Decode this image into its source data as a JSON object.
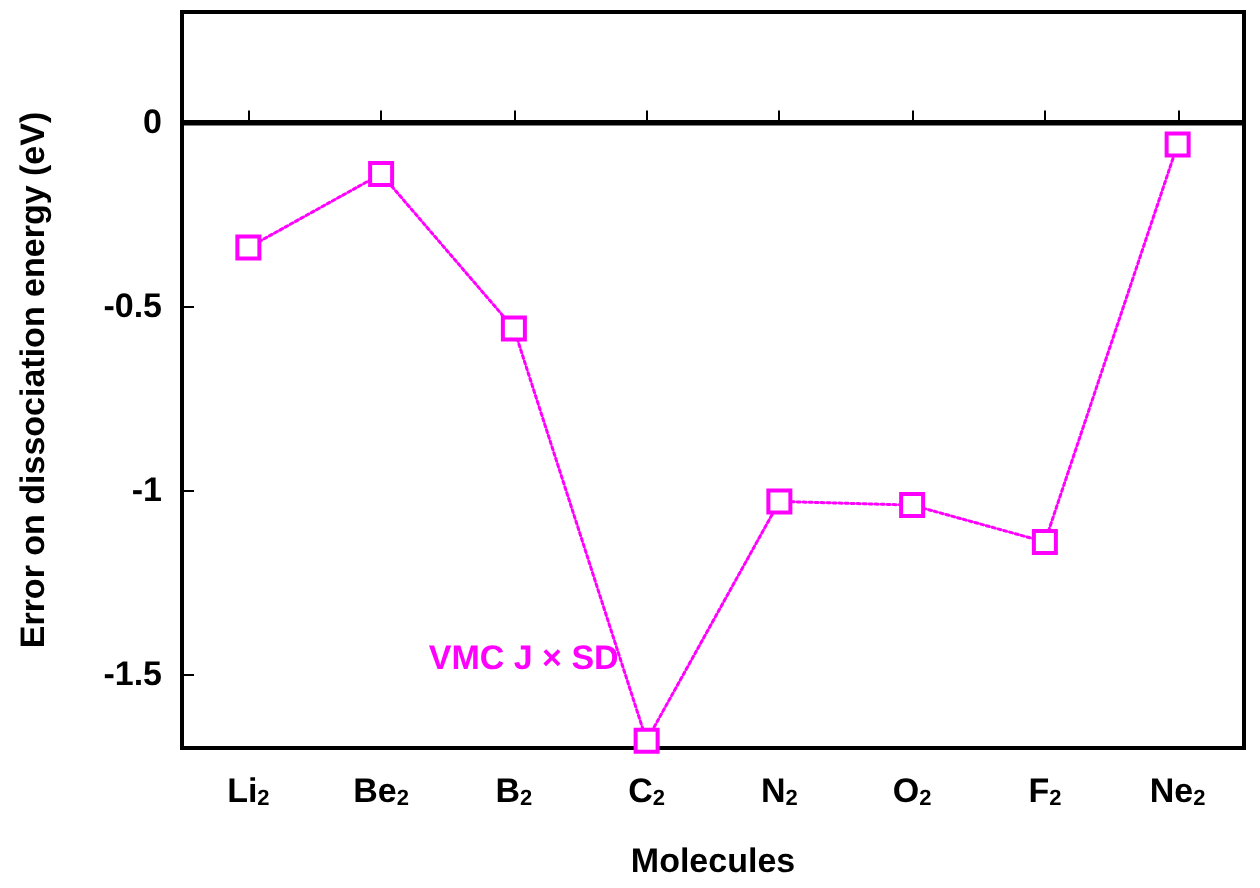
{
  "chart_data": {
    "type": "line",
    "xlabel": "Molecules",
    "ylabel": "Error on dissociation energy (eV)",
    "categories": [
      "Li$_{2}$",
      "Be$_{2}$",
      "B$_{2}$",
      "C$_{2}$",
      "N$_{2}$",
      "O$_{2}$",
      "F$_{2}$",
      "Ne$_{2}$"
    ],
    "series": [
      {
        "name": "VMC J × SD",
        "color": "#ff00ff",
        "values": [
          -0.34,
          -0.14,
          -0.56,
          -1.68,
          -1.03,
          -1.04,
          -1.14,
          -0.06
        ]
      }
    ],
    "ylim": [
      -1.7,
      0.3
    ],
    "yticks": [
      0,
      -0.5,
      -1,
      -1.5
    ],
    "ref_lines": [
      {
        "axis": "y",
        "value": 0,
        "color": "#000000"
      }
    ],
    "marker": "square",
    "line_style": "dotted",
    "grid": false,
    "legend": false
  }
}
